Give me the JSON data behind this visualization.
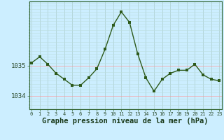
{
  "x": [
    0,
    1,
    2,
    3,
    4,
    5,
    6,
    7,
    8,
    9,
    10,
    11,
    12,
    13,
    14,
    15,
    16,
    17,
    18,
    19,
    20,
    21,
    22,
    23
  ],
  "y": [
    1035.1,
    1035.3,
    1035.05,
    1034.75,
    1034.55,
    1034.35,
    1034.35,
    1034.6,
    1034.9,
    1035.55,
    1036.35,
    1036.8,
    1036.45,
    1035.4,
    1034.6,
    1034.15,
    1034.55,
    1034.75,
    1034.85,
    1034.85,
    1035.05,
    1034.7,
    1034.55,
    1034.5
  ],
  "line_color": "#2d5a1b",
  "marker_color": "#2d5a1b",
  "bg_color": "#cceeff",
  "grid_color_v": "#aacccc",
  "grid_color_h_major": "#ff9999",
  "grid_color_h_minor": "#bbdddd",
  "xlabel": "Graphe pression niveau de la mer (hPa)",
  "xlabel_fontsize": 7.5,
  "ytick_major": [
    1034,
    1035
  ],
  "ylim": [
    1033.55,
    1037.15
  ],
  "xlim": [
    -0.3,
    23.3
  ],
  "xtick_labels": [
    "0",
    "1",
    "2",
    "3",
    "4",
    "5",
    "6",
    "7",
    "8",
    "9",
    "10",
    "11",
    "12",
    "13",
    "14",
    "15",
    "16",
    "17",
    "18",
    "19",
    "20",
    "21",
    "22",
    "23"
  ],
  "line_width": 1.0,
  "marker_size": 2.5
}
